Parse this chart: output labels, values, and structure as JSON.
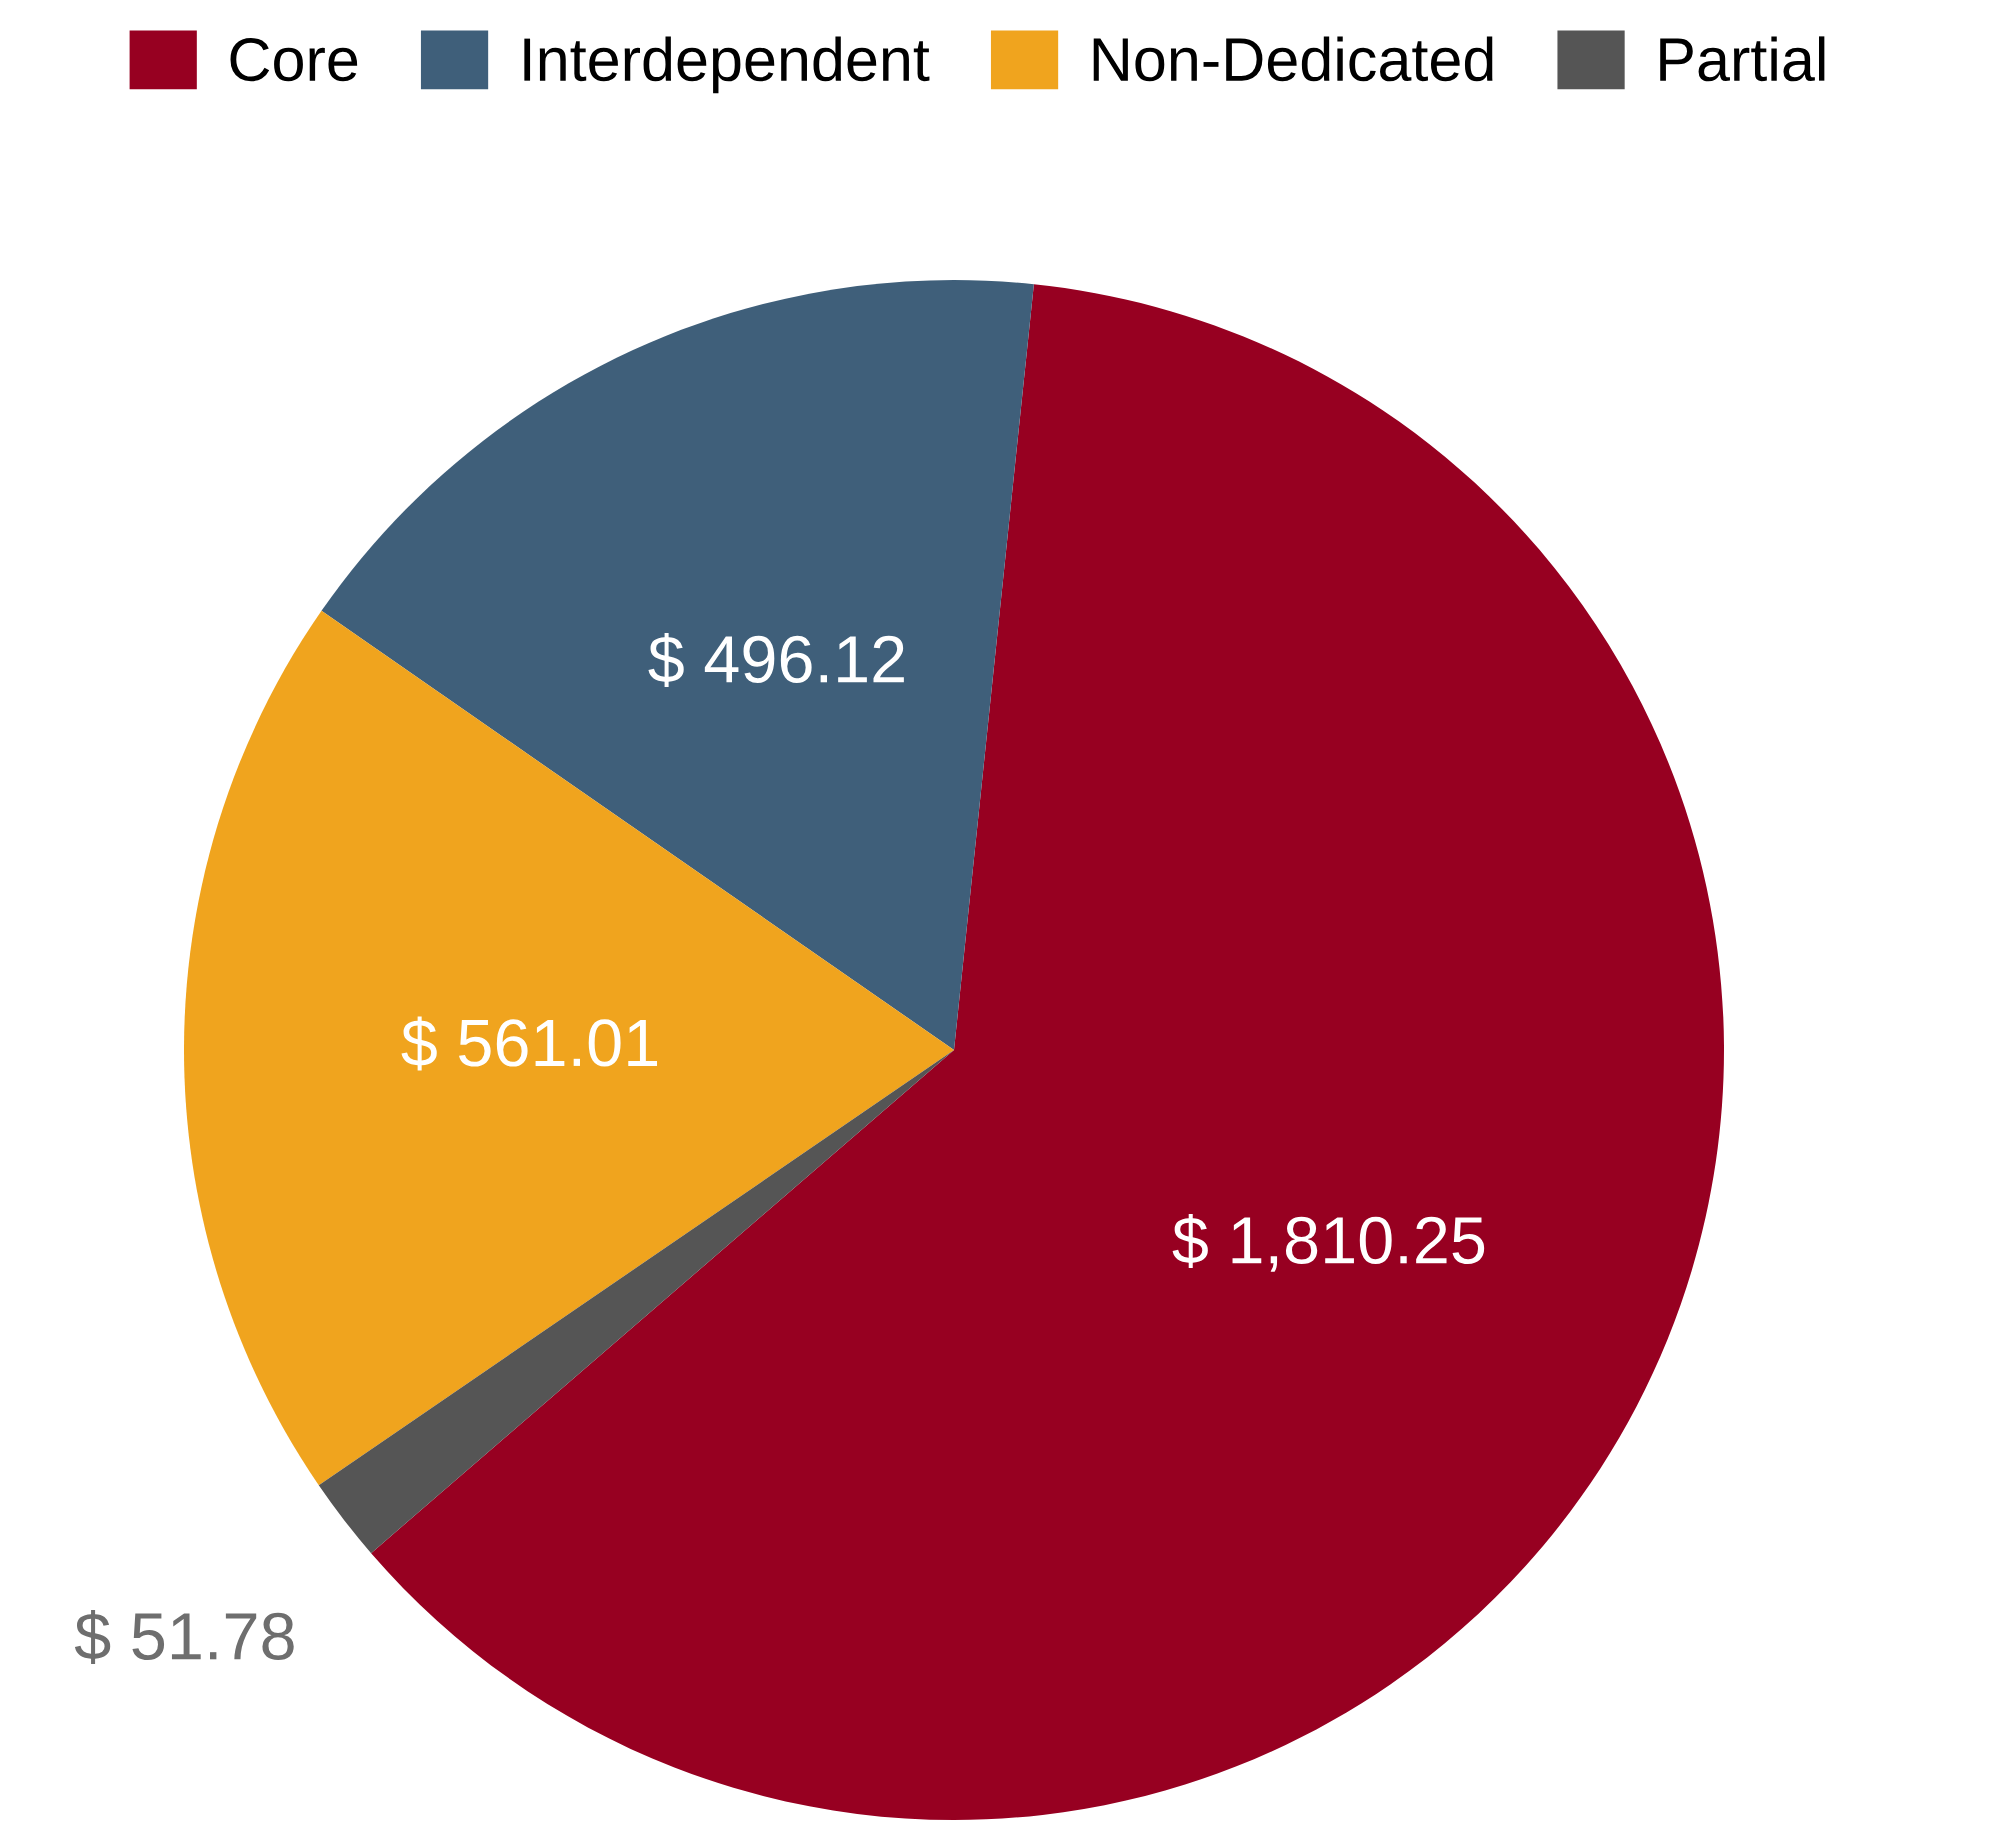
{
  "chart_data": {
    "type": "pie",
    "categories": [
      "Core",
      "Interdependent",
      "Non-Dedicated",
      "Partial"
    ],
    "values": [
      1810.25,
      496.12,
      561.01,
      51.78
    ],
    "colors": [
      "#970021",
      "#3f5f7a",
      "#f0a41e",
      "#555555"
    ],
    "value_labels": [
      "$ 1,810.25",
      "$ 496.12",
      "$ 561.01",
      "$ 51.78"
    ],
    "legend": "top"
  }
}
